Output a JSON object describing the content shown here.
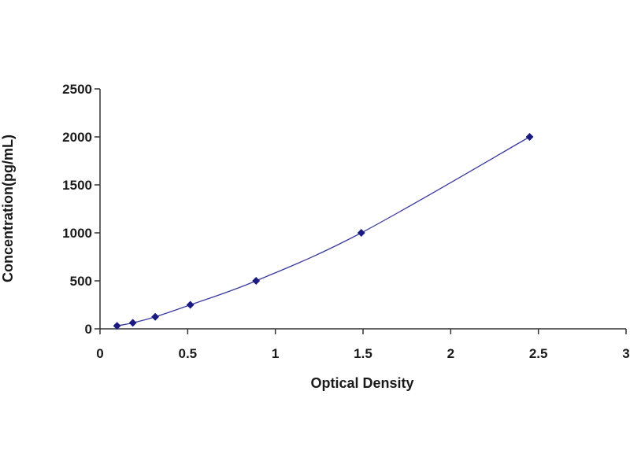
{
  "chart_data": {
    "type": "scatter",
    "title": "",
    "xlabel": "Optical Density",
    "ylabel": "Concentration(pg/mL)",
    "xlim": [
      0,
      3
    ],
    "ylim": [
      0,
      2500
    ],
    "x_ticks": [
      "0",
      "0.5",
      "1",
      "1.5",
      "2",
      "2.5",
      "3"
    ],
    "y_ticks": [
      "0",
      "500",
      "1000",
      "1500",
      "2000",
      "2500"
    ],
    "grid": false,
    "legend": "none",
    "series": [
      {
        "x": [
          0.097,
          0.187,
          0.315,
          0.515,
          0.89,
          1.49,
          2.45
        ],
        "y": [
          31.25,
          62.5,
          125,
          250,
          500,
          1000,
          2000
        ],
        "marker_color": "#1a1a80",
        "line_color": "#3a3aa0",
        "fit_curve": true
      }
    ]
  }
}
